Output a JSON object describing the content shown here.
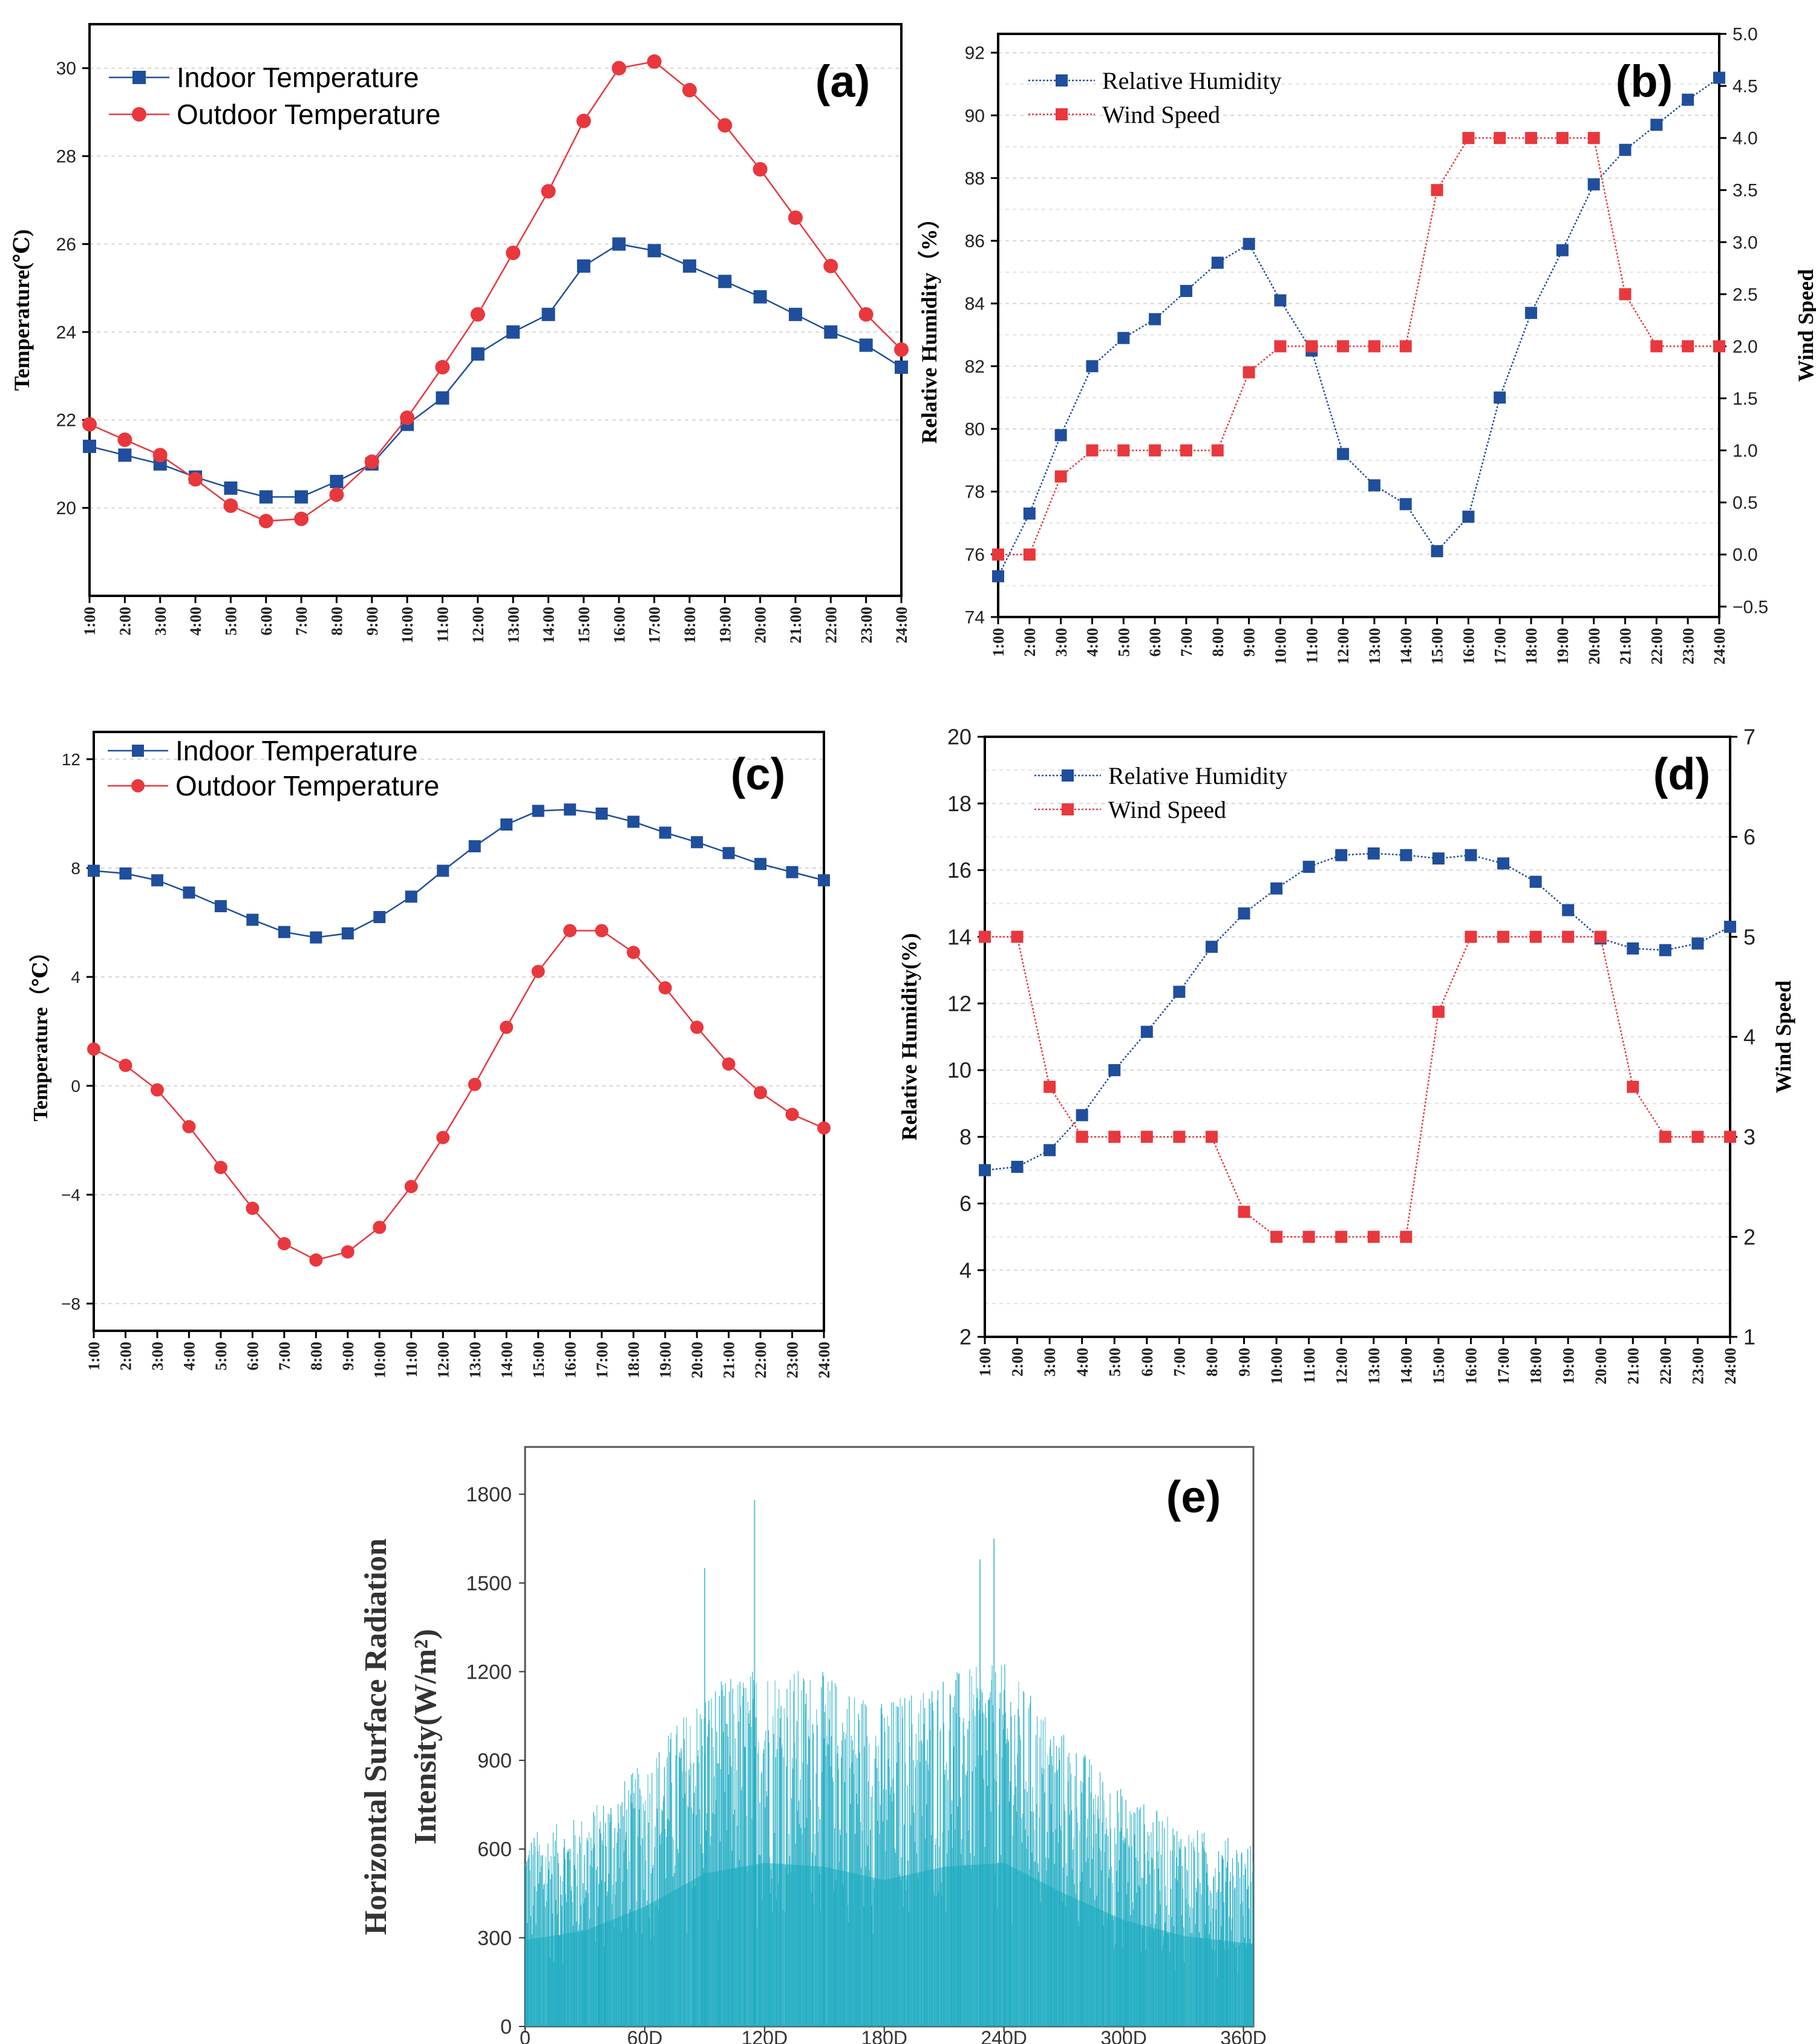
{
  "chart_data": [
    {
      "id": "a",
      "type": "line",
      "panel_label": "(a)",
      "ylabel": "Temperature(℃)",
      "xlabel": "",
      "ylim": [
        18,
        31
      ],
      "y_ticks": [
        20,
        22,
        24,
        26,
        28,
        30
      ],
      "categories": [
        "1:00",
        "2:00",
        "3:00",
        "4:00",
        "5:00",
        "6:00",
        "7:00",
        "8:00",
        "9:00",
        "10:00",
        "11:00",
        "12:00",
        "13:00",
        "14:00",
        "15:00",
        "16:00",
        "17:00",
        "18:00",
        "19:00",
        "20:00",
        "21:00",
        "22:00",
        "23:00",
        "24:00"
      ],
      "series": [
        {
          "name": "Indoor Temperature",
          "color": "#1f4e9c",
          "marker": "square",
          "values": [
            21.4,
            21.2,
            21.0,
            20.7,
            20.45,
            20.25,
            20.25,
            20.6,
            21.0,
            21.9,
            22.5,
            23.5,
            24.0,
            24.4,
            25.5,
            26.0,
            25.85,
            25.5,
            25.15,
            24.8,
            24.4,
            24.0,
            23.7,
            23.2
          ]
        },
        {
          "name": "Outdoor Temperature",
          "color": "#e8383d",
          "marker": "circle",
          "values": [
            21.9,
            21.55,
            21.2,
            20.65,
            20.05,
            19.7,
            19.75,
            20.3,
            21.05,
            22.05,
            23.2,
            24.4,
            25.8,
            27.2,
            28.8,
            30.0,
            30.15,
            29.5,
            28.7,
            27.7,
            26.6,
            25.5,
            24.4,
            23.6
          ]
        }
      ]
    },
    {
      "id": "b",
      "type": "line",
      "panel_label": "(b)",
      "ylabel": "Relative Humidity（%）",
      "y2label": "Wind Speed",
      "ylim": [
        74,
        92.6
      ],
      "y_ticks": [
        74,
        76,
        78,
        80,
        82,
        84,
        86,
        88,
        90,
        92
      ],
      "y2lim": [
        -0.6,
        5.0
      ],
      "y2_ticks": [
        -0.5,
        0.0,
        0.5,
        1.0,
        1.5,
        2.0,
        2.5,
        3.0,
        3.5,
        4.0,
        4.5,
        5.0
      ],
      "y2_tick_labels": [
        "−0.5",
        "0.0",
        "0.5",
        "1.0",
        "1.5",
        "2.0",
        "2.5",
        "3.0",
        "3.5",
        "4.0",
        "4.5",
        "5.0"
      ],
      "categories": [
        "1:00",
        "2:00",
        "3:00",
        "4:00",
        "5:00",
        "6:00",
        "7:00",
        "8:00",
        "9:00",
        "10:00",
        "11:00",
        "12:00",
        "13:00",
        "14:00",
        "15:00",
        "16:00",
        "17:00",
        "18:00",
        "19:00",
        "20:00",
        "21:00",
        "22:00",
        "23:00",
        "24:00"
      ],
      "series": [
        {
          "name": "Relative Humidity",
          "axis": "left",
          "color": "#1f4e9c",
          "marker": "square",
          "values": [
            75.3,
            77.3,
            79.8,
            82.0,
            82.9,
            83.5,
            84.4,
            85.3,
            85.9,
            84.1,
            82.5,
            79.2,
            78.2,
            77.6,
            76.1,
            77.2,
            81.0,
            83.7,
            85.7,
            87.8,
            88.9,
            89.7,
            90.5,
            91.2
          ]
        },
        {
          "name": "Wind Speed",
          "axis": "right",
          "color": "#e8383d",
          "marker": "square",
          "values": [
            0.0,
            0.0,
            0.75,
            1.0,
            1.0,
            1.0,
            1.0,
            1.0,
            1.75,
            2.0,
            2.0,
            2.0,
            2.0,
            2.0,
            3.5,
            4.0,
            4.0,
            4.0,
            4.0,
            4.0,
            2.5,
            2.0,
            2.0,
            2.0
          ]
        }
      ]
    },
    {
      "id": "c",
      "type": "line",
      "panel_label": "(c)",
      "ylabel": "Temperature（℃）",
      "ylim": [
        -9,
        13
      ],
      "y_ticks": [
        -8,
        -4,
        0,
        4,
        8,
        12
      ],
      "y_tick_labels": [
        "−8",
        "−4",
        "0",
        "4",
        "8",
        "12"
      ],
      "categories": [
        "1:00",
        "2:00",
        "3:00",
        "4:00",
        "5:00",
        "6:00",
        "7:00",
        "8:00",
        "9:00",
        "10:00",
        "11:00",
        "12:00",
        "13:00",
        "14:00",
        "15:00",
        "16:00",
        "17:00",
        "18:00",
        "19:00",
        "20:00",
        "21:00",
        "22:00",
        "23:00",
        "24:00"
      ],
      "series": [
        {
          "name": "Indoor Temperature",
          "color": "#1f4e9c",
          "marker": "square",
          "values": [
            7.9,
            7.8,
            7.55,
            7.1,
            6.6,
            6.1,
            5.65,
            5.45,
            5.6,
            6.2,
            6.95,
            7.9,
            8.8,
            9.6,
            10.1,
            10.15,
            10.0,
            9.7,
            9.3,
            8.95,
            8.55,
            8.15,
            7.85,
            7.55
          ]
        },
        {
          "name": "Outdoor Temperature",
          "color": "#e8383d",
          "marker": "circle",
          "values": [
            1.35,
            0.75,
            -0.15,
            -1.5,
            -3.0,
            -4.5,
            -5.8,
            -6.4,
            -6.1,
            -5.2,
            -3.7,
            -1.9,
            0.05,
            2.15,
            4.2,
            5.7,
            5.7,
            4.9,
            3.6,
            2.15,
            0.8,
            -0.25,
            -1.05,
            -1.55
          ]
        }
      ]
    },
    {
      "id": "d",
      "type": "line",
      "panel_label": "(d)",
      "ylabel": "Relative Humidity(%)",
      "y2label": "Wind Speed",
      "ylim": [
        2,
        20
      ],
      "y_ticks": [
        2,
        4,
        6,
        8,
        10,
        12,
        14,
        16,
        18,
        20
      ],
      "y2lim": [
        1,
        7
      ],
      "y2_ticks": [
        1,
        2,
        3,
        4,
        5,
        6,
        7
      ],
      "categories": [
        "1:00",
        "2:00",
        "3:00",
        "4:00",
        "5:00",
        "6:00",
        "7:00",
        "8:00",
        "9:00",
        "10:00",
        "11:00",
        "12:00",
        "13:00",
        "14:00",
        "15:00",
        "16:00",
        "17:00",
        "18:00",
        "19:00",
        "20:00",
        "21:00",
        "22:00",
        "23:00",
        "24:00"
      ],
      "series": [
        {
          "name": "Relative Humidity",
          "axis": "left",
          "color": "#1f4e9c",
          "marker": "square",
          "values": [
            7.0,
            7.1,
            7.6,
            8.65,
            10.0,
            11.15,
            12.35,
            13.7,
            14.7,
            15.45,
            16.1,
            16.45,
            16.5,
            16.45,
            16.35,
            16.45,
            16.2,
            15.65,
            14.8,
            13.95,
            13.65,
            13.6,
            13.8,
            14.3
          ]
        },
        {
          "name": "Wind Speed",
          "axis": "right",
          "color": "#e8383d",
          "marker": "square",
          "values": [
            5.0,
            5.0,
            3.5,
            3.0,
            3.0,
            3.0,
            3.0,
            3.0,
            2.25,
            2.0,
            2.0,
            2.0,
            2.0,
            2.0,
            4.25,
            5.0,
            5.0,
            5.0,
            5.0,
            5.0,
            3.5,
            3.0,
            3.0,
            3.0
          ]
        }
      ]
    },
    {
      "id": "e",
      "type": "bar",
      "panel_label": "(e)",
      "ylabel_line1": "Horizontal Surface Radiation",
      "ylabel_line2": "Intensity(W/m²)",
      "ylim": [
        0,
        1960
      ],
      "y_ticks": [
        0,
        300,
        600,
        900,
        1200,
        1500,
        1800
      ],
      "xlim": [
        0,
        365
      ],
      "x_ticks": [
        0,
        60,
        120,
        180,
        240,
        300,
        360
      ],
      "x_tick_labels": [
        "0",
        "60D",
        "120D",
        "180D",
        "240D",
        "300D",
        "360D"
      ],
      "color": "#17a9c0",
      "description_values": "hourly radiation over 365 days",
      "envelope_days": [
        0,
        30,
        60,
        90,
        120,
        150,
        180,
        210,
        240,
        270,
        300,
        330,
        365
      ],
      "envelope_max": [
        650,
        720,
        900,
        1150,
        1230,
        1200,
        1100,
        1200,
        1230,
        1000,
        800,
        680,
        620
      ],
      "peaks": [
        {
          "day": 90,
          "value": 1550
        },
        {
          "day": 115,
          "value": 1780
        },
        {
          "day": 235,
          "value": 1650
        },
        {
          "day": 228,
          "value": 1580
        }
      ]
    }
  ]
}
